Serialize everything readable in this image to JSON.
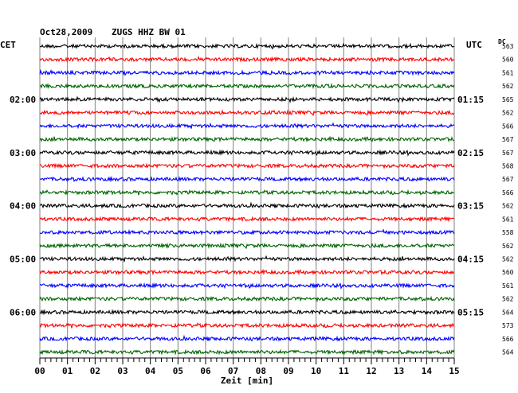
{
  "header": {
    "date": "Oct28,2009",
    "station": "ZUGS HHZ BW 01",
    "left_tz": "CET",
    "right_tz": "UTC",
    "dc_label": "DC"
  },
  "colors": [
    "#000000",
    "#ff0000",
    "#0000ff",
    "#006400"
  ],
  "chart_data": {
    "type": "line",
    "xlabel": "Zeit [min]",
    "xlim": [
      0,
      15
    ],
    "x_ticks": [
      "00",
      "01",
      "02",
      "03",
      "04",
      "05",
      "06",
      "07",
      "08",
      "09",
      "10",
      "11",
      "12",
      "13",
      "14",
      "15"
    ],
    "left_time_labels": [
      {
        "trace": 4,
        "label": "02:00"
      },
      {
        "trace": 8,
        "label": "03:00"
      },
      {
        "trace": 12,
        "label": "04:00"
      },
      {
        "trace": 16,
        "label": "05:00"
      },
      {
        "trace": 20,
        "label": "06:00"
      }
    ],
    "right_time_labels": [
      {
        "trace": 4,
        "label": "01:15"
      },
      {
        "trace": 8,
        "label": "02:15"
      },
      {
        "trace": 12,
        "label": "03:15"
      },
      {
        "trace": 16,
        "label": "04:15"
      },
      {
        "trace": 20,
        "label": "05:15"
      }
    ],
    "dc_values": [
      563,
      560,
      561,
      562,
      565,
      562,
      566,
      567,
      567,
      568,
      567,
      566,
      562,
      561,
      558,
      562,
      562,
      560,
      561,
      562,
      564,
      573,
      566,
      564
    ],
    "traces": 24
  }
}
